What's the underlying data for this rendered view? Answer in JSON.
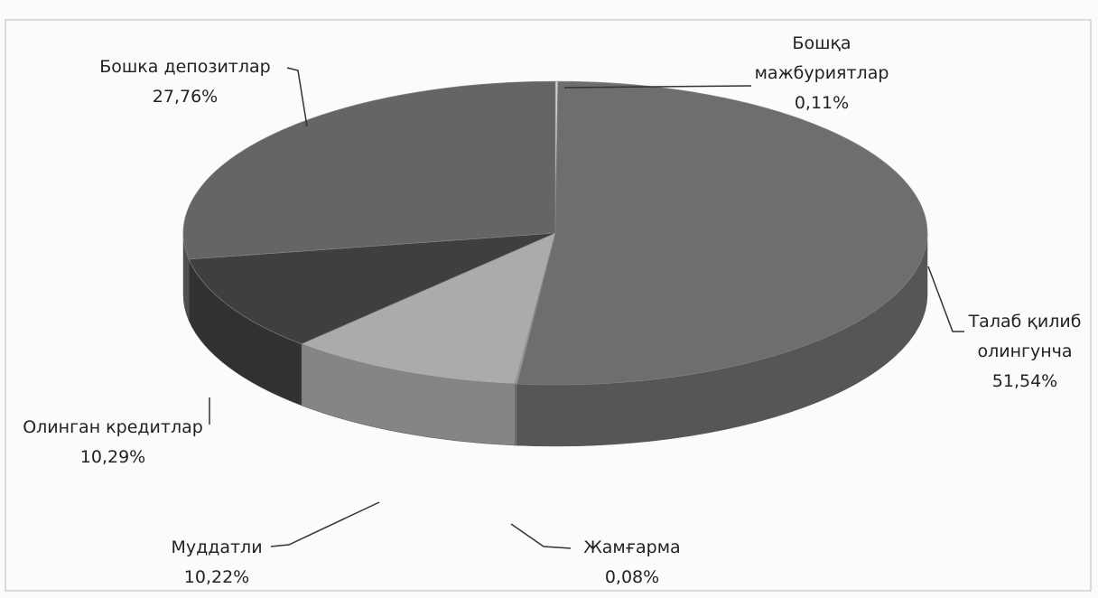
{
  "chart_data": {
    "type": "pie",
    "categories": [
      "Бошқа мажбуриятлар",
      "Талаб қилиб олингунча",
      "Жамғарма",
      "Муддатли",
      "Олинган кредитлар",
      "Бошка депозитлар"
    ],
    "values": [
      0.11,
      51.54,
      0.08,
      10.22,
      10.29,
      27.76
    ],
    "value_labels": [
      "0,11%",
      "51,54%",
      "0,08%",
      "10,22%",
      "10,29%",
      "27,76%"
    ],
    "colors": [
      "#d0d0d0",
      "#6e6e6e",
      "#9a9a9a",
      "#ababab",
      "#3f3f3f",
      "#656565"
    ]
  }
}
